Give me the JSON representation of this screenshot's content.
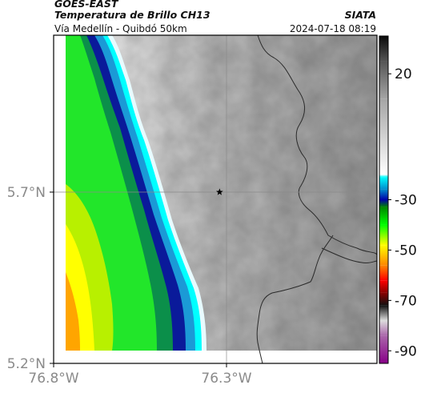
{
  "header": {
    "title_line1": "GOES-EAST",
    "title_line2": "Temperatura de Brillo CH13",
    "subtitle": "Vía Medellín - Quibdó 50km",
    "organization": "SIATA",
    "datetime": "2024-07-18 08:19"
  },
  "map": {
    "lat_ticks": [
      {
        "value": 5.7,
        "label": "5.7°N"
      },
      {
        "value": 5.2,
        "label": "5.2°N"
      }
    ],
    "lon_ticks": [
      {
        "value": -76.8,
        "label": "76.8°W"
      },
      {
        "value": -76.3,
        "label": "76.3°W"
      }
    ],
    "marker": {
      "type": "star",
      "lon": -76.32,
      "lat": 5.7
    },
    "gridlines": true
  },
  "colorbar": {
    "range": [
      -95,
      35
    ],
    "ticks": [
      {
        "value": 20,
        "label": "20"
      },
      {
        "value": -30,
        "label": "-30"
      },
      {
        "value": -50,
        "label": "-50"
      },
      {
        "value": -70,
        "label": "-70"
      },
      {
        "value": -90,
        "label": "-90"
      }
    ],
    "stops": [
      {
        "value": 35,
        "color": "#0a0a0a"
      },
      {
        "value": 25,
        "color": "#555555"
      },
      {
        "value": 10,
        "color": "#a5a5a5"
      },
      {
        "value": -20,
        "color": "#ffffff"
      },
      {
        "value": -21,
        "color": "#00ffff"
      },
      {
        "value": -26,
        "color": "#0088cc"
      },
      {
        "value": -30,
        "color": "#0000aa"
      },
      {
        "value": -33,
        "color": "#008800"
      },
      {
        "value": -40,
        "color": "#00ff00"
      },
      {
        "value": -48,
        "color": "#ffff00"
      },
      {
        "value": -56,
        "color": "#ff8800"
      },
      {
        "value": -62,
        "color": "#ff0000"
      },
      {
        "value": -67,
        "color": "#880000"
      },
      {
        "value": -72,
        "color": "#111111"
      },
      {
        "value": -78,
        "color": "#dddddd"
      },
      {
        "value": -84,
        "color": "#aa66aa"
      },
      {
        "value": -95,
        "color": "#880088"
      }
    ]
  }
}
